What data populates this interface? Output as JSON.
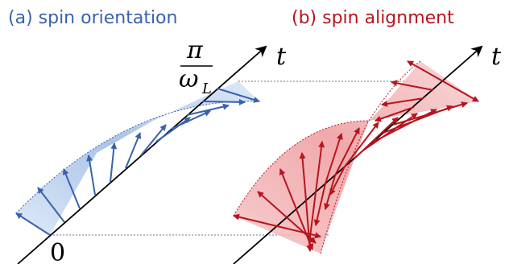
{
  "panels": {
    "a": {
      "title": "(a) spin orientation",
      "color": "#3a62aa",
      "fill": "#a9c6ec"
    },
    "b": {
      "title": "(b) spin alignment",
      "color": "#b8141e",
      "fill": "#f08e92"
    }
  },
  "axis": {
    "label": "t",
    "color": "#000000"
  },
  "labels": {
    "origin": "0",
    "half_period_numerator": "π",
    "half_period_denominator": "ω",
    "half_period_subscript": "L"
  }
}
